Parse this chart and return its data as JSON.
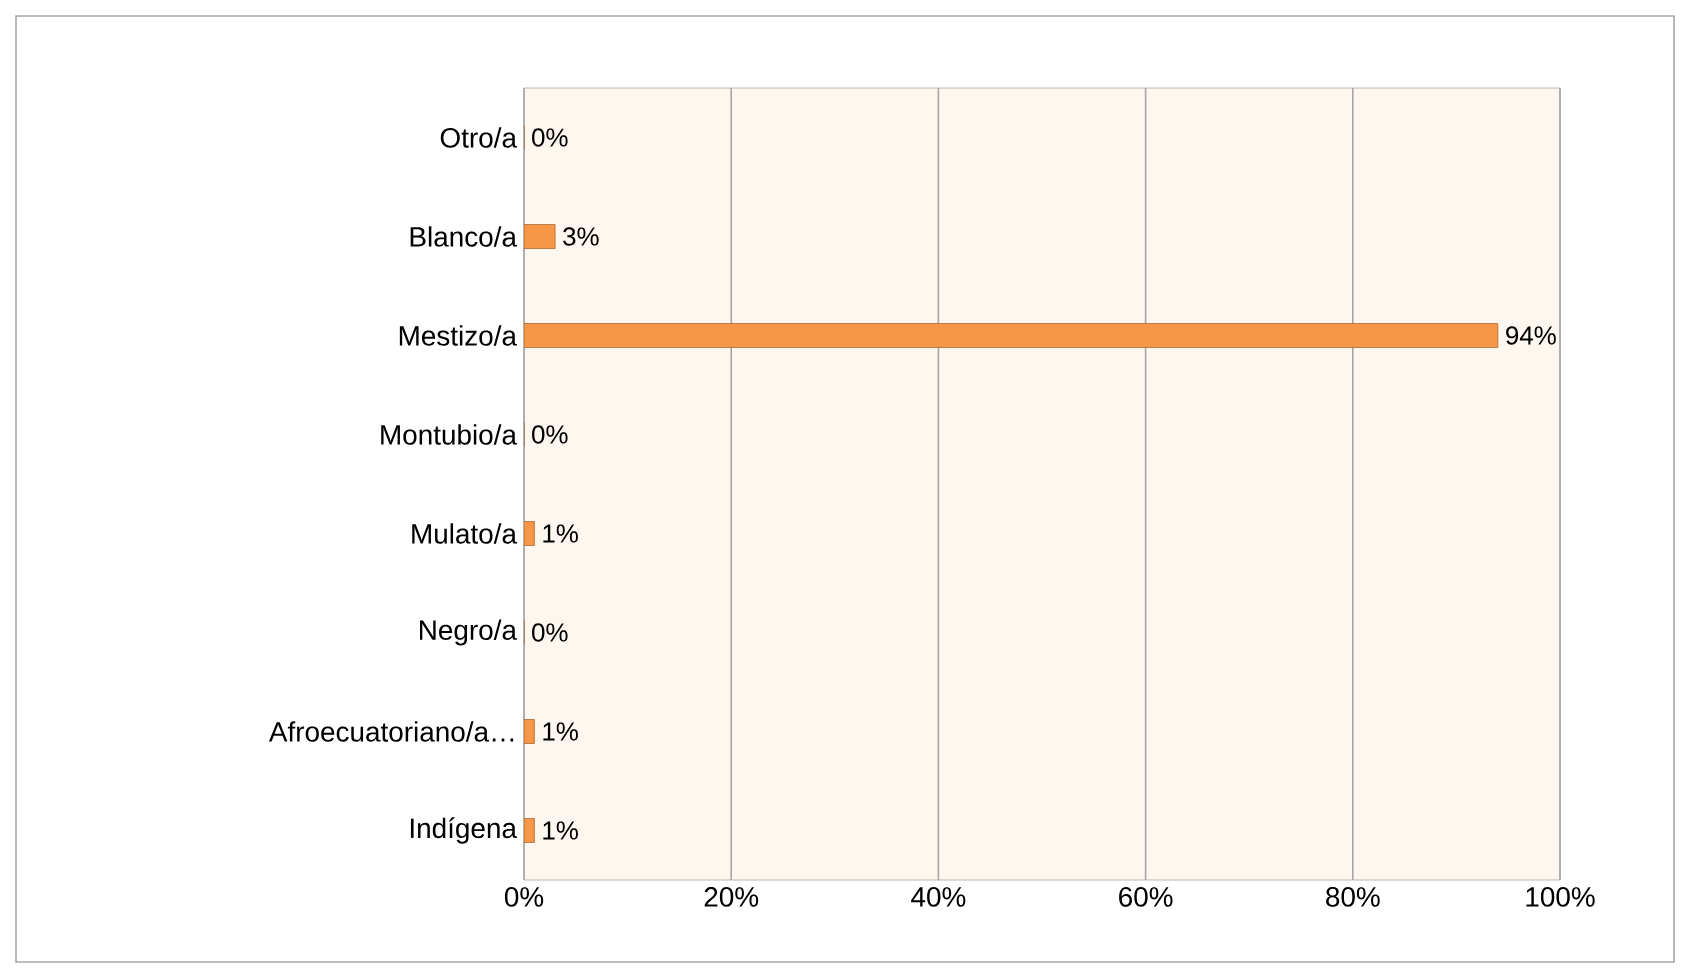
{
  "chart_data": {
    "type": "bar",
    "orientation": "horizontal",
    "categories": [
      "Otro/a",
      "Blanco/a",
      "Mestizo/a",
      "Montubio/a",
      "Mulato/a",
      "Negro/a",
      "Afroecuatoriano/a…",
      "Indígena"
    ],
    "values": [
      0,
      3,
      94,
      0,
      1,
      0,
      1,
      1
    ],
    "value_labels": [
      "0%",
      "3%",
      "94%",
      "0%",
      "1%",
      "0%",
      "1%",
      "1%"
    ],
    "color": "#f79646",
    "xlim": [
      0,
      100
    ],
    "xticks": [
      {
        "value": 0,
        "label": "0%"
      },
      {
        "value": 20,
        "label": "20%"
      },
      {
        "value": 40,
        "label": "40%"
      },
      {
        "value": 60,
        "label": "60%"
      },
      {
        "value": 80,
        "label": "80%"
      },
      {
        "value": 100,
        "label": "100%"
      }
    ],
    "grid": "x"
  }
}
